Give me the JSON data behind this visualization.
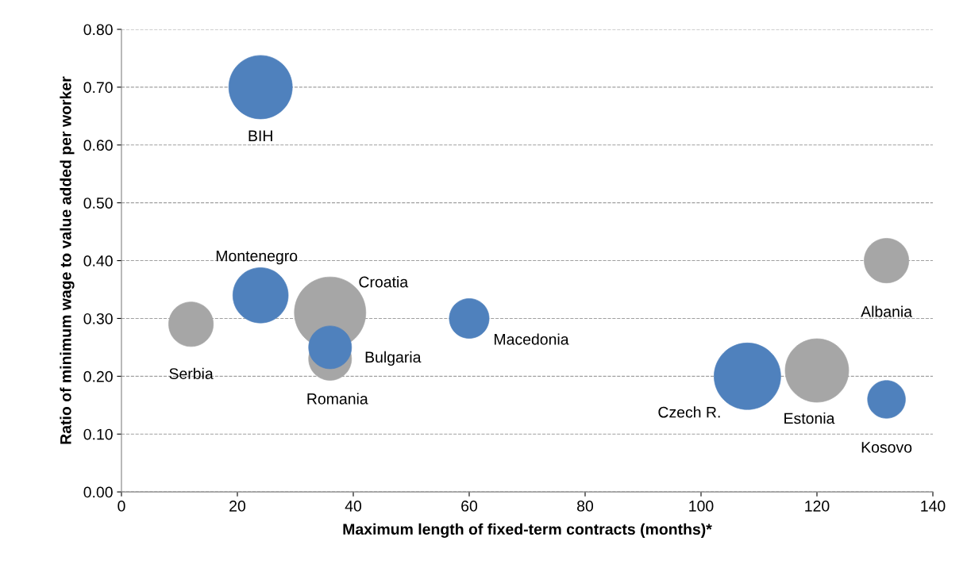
{
  "chart_data": {
    "type": "bubble",
    "xlabel": "Maximum length of fixed-term contracts (months)*",
    "ylabel": "Ratio of minimum wage to value added per worker",
    "xlim": [
      0,
      140
    ],
    "xticks": [
      0,
      20,
      40,
      60,
      80,
      100,
      120,
      140
    ],
    "ylim": [
      0,
      0.8
    ],
    "yticks": [
      {
        "value": 0,
        "label": "0.00"
      },
      {
        "value": 0.1,
        "label": "0.10"
      },
      {
        "value": 0.2,
        "label": "0.20"
      },
      {
        "value": 0.3,
        "label": "0.30"
      },
      {
        "value": 0.4,
        "label": "0.40"
      },
      {
        "value": 0.5,
        "label": "0.50"
      },
      {
        "value": 0.6,
        "label": "0.60"
      },
      {
        "value": 0.7,
        "label": "0.70"
      },
      {
        "value": 0.8,
        "label": "0.80"
      }
    ],
    "grid": "y",
    "legend": false,
    "series": [
      {
        "color": "#a6a6a6",
        "x": [
          12,
          36,
          36,
          132,
          120
        ],
        "values": [
          0.29,
          0.31,
          0.23,
          0.4,
          0.21
        ],
        "sizes": [
          0.39,
          1,
          0.36,
          0.39,
          0.79
        ]
      },
      {
        "color": "#4f81bd",
        "x": [
          24,
          24,
          36,
          60,
          108,
          132
        ],
        "values": [
          0.7,
          0.34,
          0.25,
          0.3,
          0.2,
          0.16
        ],
        "sizes": [
          0.79,
          0.6,
          0.36,
          0.31,
          0.87,
          0.28
        ]
      }
    ],
    "annotations": [
      {
        "text": "Serbia",
        "x": 12,
        "y": 0.29
      },
      {
        "text": "Croatia",
        "x": 36,
        "y": 0.31
      },
      {
        "text": "Romania",
        "x": 36,
        "y": 0.23
      },
      {
        "text": "Albania",
        "x": 132,
        "y": 0.4
      },
      {
        "text": "Estonia",
        "x": 120,
        "y": 0.21
      },
      {
        "text": "BIH",
        "x": 24,
        "y": 0.7
      },
      {
        "text": "Montenegro",
        "x": 24,
        "y": 0.34
      },
      {
        "text": "Bulgaria",
        "x": 36,
        "y": 0.25
      },
      {
        "text": "Macedonia",
        "x": 60,
        "y": 0.3
      },
      {
        "text": "Czech R.",
        "x": 108,
        "y": 0.2
      },
      {
        "text": "Kosovo",
        "x": 132,
        "y": 0.16
      }
    ]
  }
}
